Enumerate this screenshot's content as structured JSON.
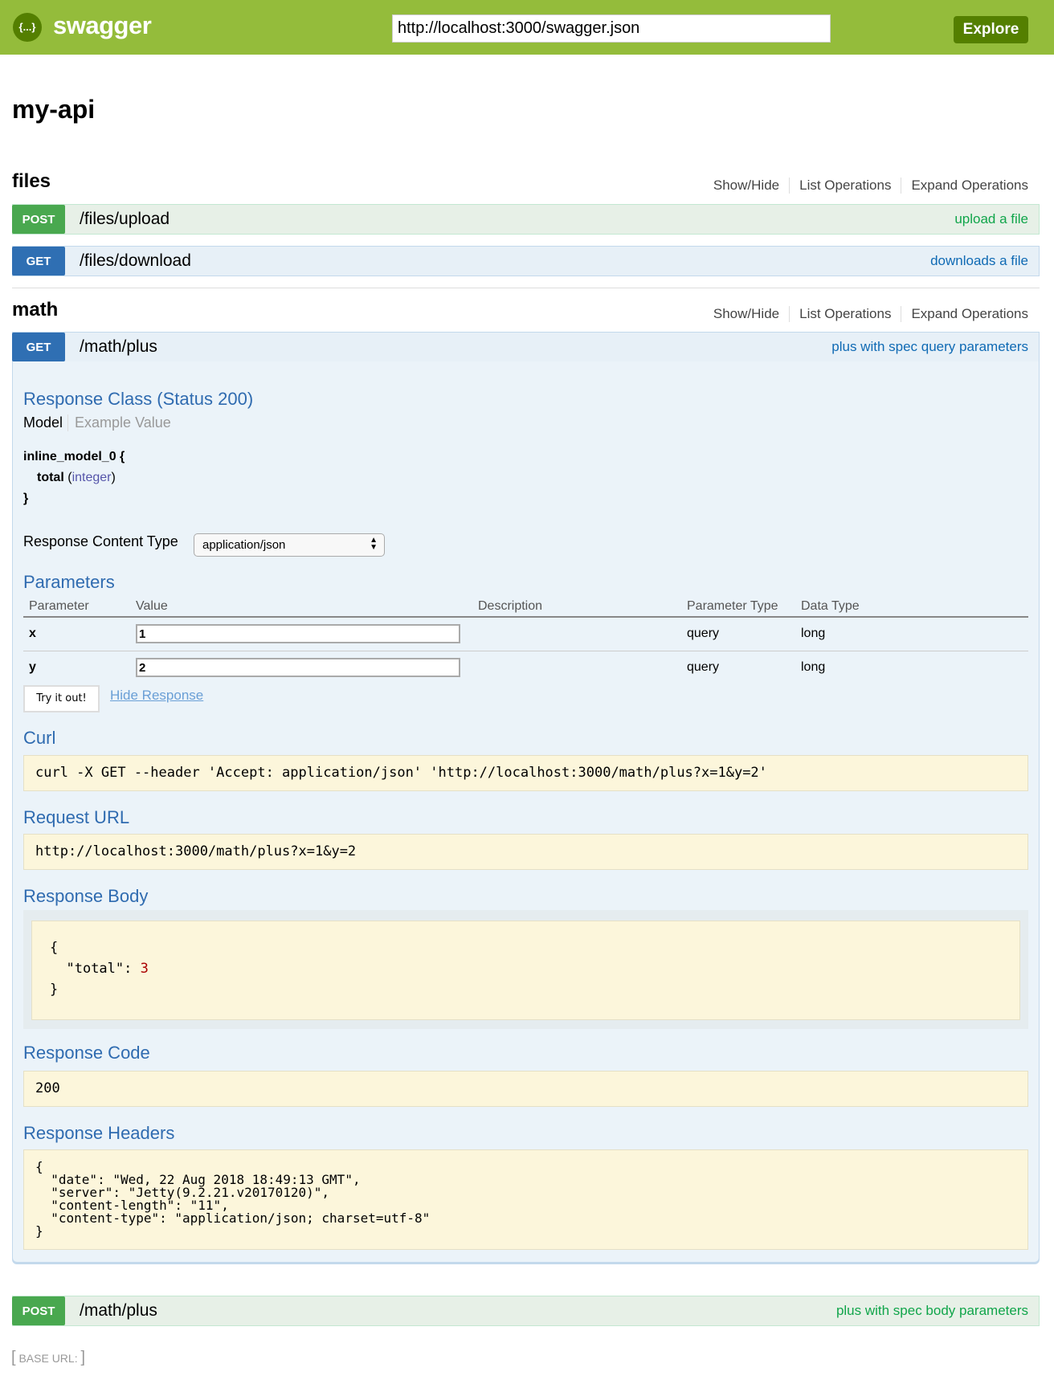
{
  "header": {
    "logo_text": "swagger",
    "logo_icon": "{...}",
    "url": "http://localhost:3000/swagger.json",
    "explore": "Explore",
    "brand_color": "#94bc3b"
  },
  "title": "my-api",
  "resources": [
    {
      "name": "files",
      "links": [
        "Show/Hide",
        "List Operations",
        "Expand Operations"
      ],
      "operations": [
        {
          "method": "POST",
          "path": "/files/upload",
          "summary": "upload a file"
        },
        {
          "method": "GET",
          "path": "/files/download",
          "summary": "downloads a file"
        }
      ]
    },
    {
      "name": "math",
      "links": [
        "Show/Hide",
        "List Operations",
        "Expand Operations"
      ],
      "operations": [
        {
          "method": "GET",
          "path": "/math/plus",
          "summary": "plus with spec query parameters"
        },
        {
          "method": "POST",
          "path": "/math/plus",
          "summary": "plus with spec body parameters"
        }
      ]
    }
  ],
  "expanded": {
    "response_class": "Response Class (Status 200)",
    "model_tab": "Model",
    "example_tab": "Example Value",
    "model_name": "inline_model_0 {",
    "model_field": "total",
    "model_type": "integer",
    "model_close": "}",
    "content_type_label": "Response Content Type",
    "content_type": "application/json",
    "parameters": "Parameters",
    "columns": [
      "Parameter",
      "Value",
      "Description",
      "Parameter Type",
      "Data Type"
    ],
    "rows": [
      {
        "name": "x",
        "value": "1",
        "type": "query",
        "data_type": "long"
      },
      {
        "name": "y",
        "value": "2",
        "type": "query",
        "data_type": "long"
      }
    ],
    "try": "Try it out!",
    "hide": "Hide Response",
    "curl_label": "Curl",
    "curl": "curl -X GET --header 'Accept: application/json' 'http://localhost:3000/math/plus?x=1&y=2'",
    "request_url_label": "Request URL",
    "request_url": "http://localhost:3000/math/plus?x=1&y=2",
    "body_label": "Response Body",
    "body_open": "{",
    "body_key": "\"total\": ",
    "body_value": "3",
    "body_close": "}",
    "code_label": "Response Code",
    "code": "200",
    "headers_label": "Response Headers",
    "headers": "{\n  \"date\": \"Wed, 22 Aug 2018 18:49:13 GMT\",\n  \"server\": \"Jetty(9.2.21.v20170120)\",\n  \"content-length\": \"11\",\n  \"content-type\": \"application/json; charset=utf-8\"\n}"
  },
  "footer": {
    "base_url": "BASE URL",
    "bracket_open": "[",
    "bracket_close": "]"
  }
}
